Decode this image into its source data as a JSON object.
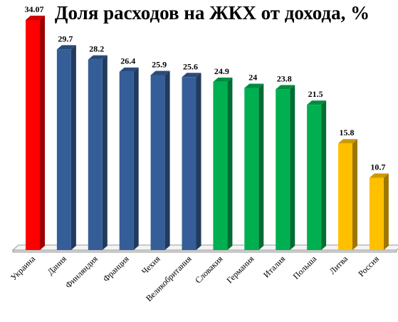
{
  "chart_data": {
    "type": "bar",
    "title": "Доля расходов на ЖКХ от дохода, %",
    "xlabel": "",
    "ylabel": "",
    "ylim": [
      0,
      34.07
    ],
    "grid": false,
    "legend": "none",
    "categories": [
      "Украина",
      "Дания",
      "Финляндия",
      "Франция",
      "Чехия",
      "Великобритания",
      "Словакия",
      "Германия",
      "Италия",
      "Польша",
      "Литва",
      "Россия"
    ],
    "values": [
      34.07,
      29.7,
      28.2,
      26.4,
      25.9,
      25.6,
      24.9,
      24,
      23.8,
      21.5,
      15.8,
      10.7
    ],
    "value_labels": [
      "34.07",
      "29.7",
      "28.2",
      "26.4",
      "25.9",
      "25.6",
      "24.9",
      "24",
      "23.8",
      "21.5",
      "15.8",
      "10.7"
    ],
    "bar_colors": [
      "#ff0000",
      "#355e98",
      "#355e98",
      "#355e98",
      "#355e98",
      "#355e98",
      "#00b050",
      "#00b050",
      "#00b050",
      "#00b050",
      "#ffc000",
      "#ffc000"
    ]
  }
}
